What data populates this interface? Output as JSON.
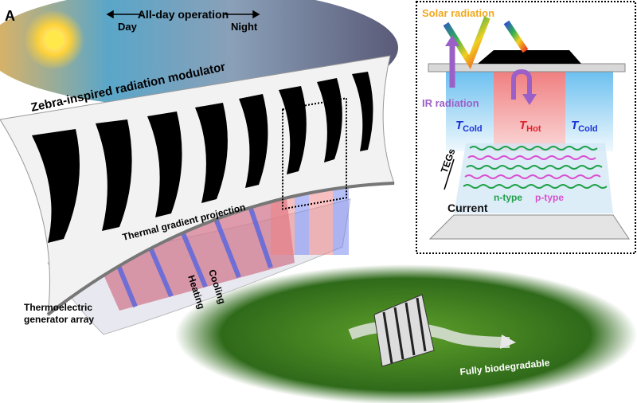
{
  "panel_label": "A",
  "sky": {
    "operation": "All-day operation",
    "day": "Day",
    "night": "Night"
  },
  "main": {
    "modulator": "Zebra-inspired radiation modulator",
    "projection": "Thermal gradient projection",
    "cooling": "Cooling",
    "heating": "Heating",
    "teg_array_line1": "Thermoelectric",
    "teg_array_line2": "generator array",
    "biodegradable": "Fully biodegradable"
  },
  "inset": {
    "solar": "Solar radiation",
    "ir": "IR radiation",
    "t_symbol": "T",
    "cold_sub": "Cold",
    "hot_sub": "Hot",
    "tegs": "TEGs",
    "n_type": "n-type",
    "p_type": "p-type",
    "current": "Current"
  },
  "colors": {
    "cold": "#1a2fd6",
    "hot": "#e0202a",
    "solar": "#f2a81c",
    "ir": "#9b5fc8",
    "n_type": "#1fa04a",
    "p_type": "#d94fd0"
  }
}
